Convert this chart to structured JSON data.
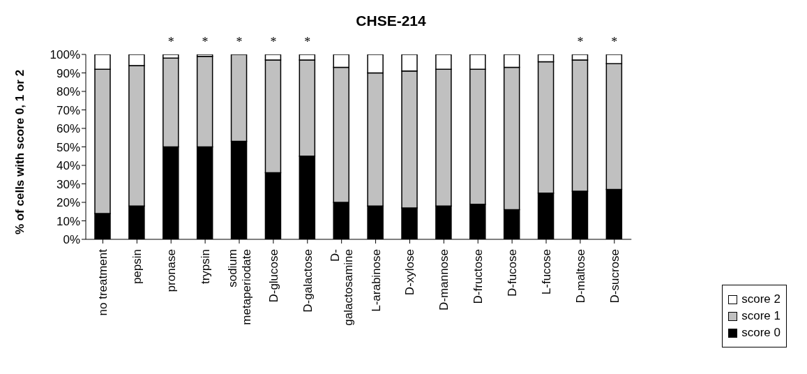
{
  "chart_data": {
    "type": "bar",
    "title": "CHSE-214",
    "ylabel": "% of cells with score 0, 1 or 2",
    "stacked": true,
    "categories": [
      "no treatment",
      "pepsin",
      "pronase",
      "trypsin",
      "sodium metaperiodate",
      "D-glucose",
      "D-galactose",
      "D-galactosamine",
      "L-arabinose",
      "D-xylose",
      "D-mannose",
      "D-fructose",
      "D-fucose",
      "L-fucose",
      "D-maltose",
      "D-sucrose"
    ],
    "series": [
      {
        "name": "score 0",
        "color": "#000000",
        "values": [
          14,
          18,
          50,
          50,
          53,
          36,
          45,
          20,
          18,
          17,
          18,
          19,
          16,
          25,
          26,
          27
        ]
      },
      {
        "name": "score 1",
        "color": "#c0c0c0",
        "values": [
          78,
          76,
          48,
          49,
          47,
          61,
          52,
          73,
          72,
          74,
          74,
          73,
          77,
          71,
          71,
          68
        ]
      },
      {
        "name": "score 2",
        "color": "#ffffff",
        "values": [
          8,
          6,
          2,
          1,
          0,
          3,
          3,
          7,
          10,
          9,
          8,
          8,
          7,
          4,
          3,
          5
        ]
      }
    ],
    "ylim": [
      0,
      100
    ],
    "yticks": [
      {
        "value": 0,
        "label": "0%"
      },
      {
        "value": 10,
        "label": "10%"
      },
      {
        "value": 20,
        "label": "20%"
      },
      {
        "value": 30,
        "label": "30%"
      },
      {
        "value": 40,
        "label": "40%"
      },
      {
        "value": 50,
        "label": "50%"
      },
      {
        "value": 60,
        "label": "60%"
      },
      {
        "value": 70,
        "label": "70%"
      },
      {
        "value": 80,
        "label": "80%"
      },
      {
        "value": 90,
        "label": "90%"
      },
      {
        "value": 100,
        "label": "100%"
      }
    ],
    "annotations": [
      {
        "text": "*",
        "x": "pronase",
        "y": 100
      },
      {
        "text": "*",
        "x": "trypsin",
        "y": 100
      },
      {
        "text": "*",
        "x": "sodium metaperiodate",
        "y": 100
      },
      {
        "text": "*",
        "x": "D-glucose",
        "y": 100
      },
      {
        "text": "*",
        "x": "D-galactose",
        "y": 100
      },
      {
        "text": "*",
        "x": "D-maltose",
        "y": 100
      },
      {
        "text": "*",
        "x": "D-sucrose",
        "y": 100
      }
    ],
    "grid": false,
    "legend": "right"
  }
}
